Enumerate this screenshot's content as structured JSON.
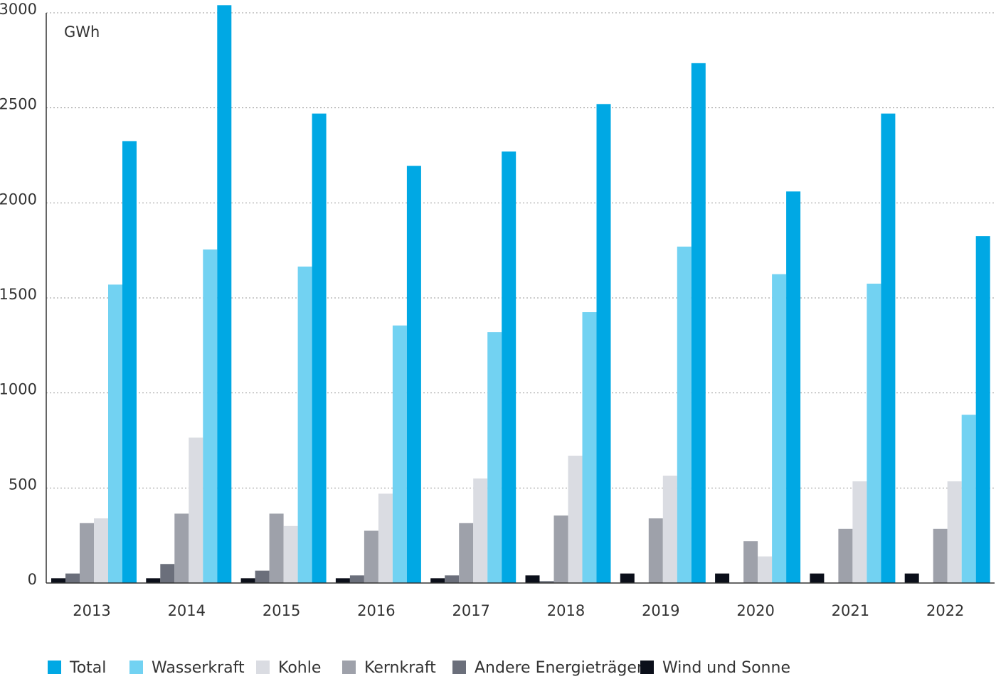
{
  "chart_data": {
    "type": "bar",
    "unit_label": "GWh",
    "categories": [
      "2013",
      "2014",
      "2015",
      "2016",
      "2017",
      "2018",
      "2019",
      "2020",
      "2021",
      "2022"
    ],
    "y_ticks": [
      "0",
      "500",
      "1000",
      "1500",
      "2000",
      "2500",
      "3000"
    ],
    "ylim": [
      0,
      3000
    ],
    "grid": true,
    "legend_position": "bottom",
    "series": [
      {
        "name": "Wind und Sonne",
        "color": "#0b0f1a",
        "values": [
          25,
          25,
          25,
          25,
          25,
          40,
          50,
          50,
          50,
          50
        ]
      },
      {
        "name": "Andere Energieträger",
        "color": "#6b6f7b",
        "values": [
          50,
          100,
          65,
          40,
          40,
          10,
          0,
          0,
          0,
          0
        ]
      },
      {
        "name": "Kernkraft",
        "color": "#9ea1aa",
        "values": [
          315,
          365,
          365,
          275,
          315,
          355,
          340,
          220,
          285,
          285
        ]
      },
      {
        "name": "Kohle",
        "color": "#dadce2",
        "values": [
          340,
          765,
          300,
          470,
          550,
          670,
          565,
          140,
          535,
          535
        ]
      },
      {
        "name": "Wasserkraft",
        "color": "#72d2f2",
        "values": [
          1570,
          1755,
          1665,
          1355,
          1320,
          1425,
          1770,
          1625,
          1575,
          885
        ]
      },
      {
        "name": "Total",
        "color": "#00a8e4",
        "values": [
          2325,
          3040,
          2470,
          2195,
          2270,
          2520,
          2735,
          2060,
          2470,
          1825
        ]
      }
    ],
    "legend_order": [
      "Total",
      "Wasserkraft",
      "Kohle",
      "Kernkraft",
      "Andere Energieträger",
      "Wind und Sonne"
    ]
  }
}
